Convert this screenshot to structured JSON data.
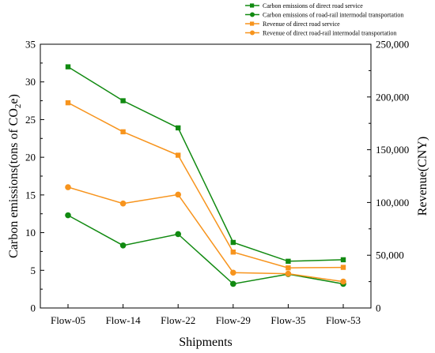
{
  "chart_data": {
    "type": "line",
    "xlabel": "Shipments",
    "ylabel_left": "Carbon emissions(tons of CO",
    "ylabel_left_sub": "2",
    "ylabel_left_end": "e)",
    "ylabel_right": "Revenue(CNY)",
    "categories": [
      "Flow-05",
      "Flow-14",
      "Flow-22",
      "Flow-29",
      "Flow-35",
      "Flow-53"
    ],
    "ylim_left": [
      0,
      35
    ],
    "ylim_right": [
      0,
      250000
    ],
    "yticks_left": [
      "0",
      "5",
      "10",
      "15",
      "20",
      "25",
      "30",
      "35"
    ],
    "yticks_right": [
      "0",
      "50,000",
      "100,000",
      "150,000",
      "200,000",
      "250,000"
    ],
    "legend_position": "top-right",
    "series": [
      {
        "name": "Carbon emissions of direct road service",
        "axis": "left",
        "marker": "square",
        "color": "#118a11",
        "values": [
          32.0,
          27.5,
          23.9,
          8.7,
          6.2,
          6.4
        ]
      },
      {
        "name": "Carbon emissions of road-rail intermodal transportation",
        "axis": "left",
        "marker": "circle",
        "color": "#118a11",
        "values": [
          12.3,
          8.3,
          9.8,
          3.2,
          4.5,
          3.2
        ]
      },
      {
        "name": "Revenue of direct road service",
        "axis": "right",
        "marker": "square",
        "color": "#f7941d",
        "values": [
          194500,
          167000,
          144800,
          53000,
          38000,
          38500
        ]
      },
      {
        "name": "Revenue of direct road-rail intermodal transportation",
        "axis": "right",
        "marker": "circle",
        "color": "#f7941d",
        "values": [
          114500,
          99000,
          107500,
          33500,
          32500,
          25000
        ]
      }
    ]
  }
}
